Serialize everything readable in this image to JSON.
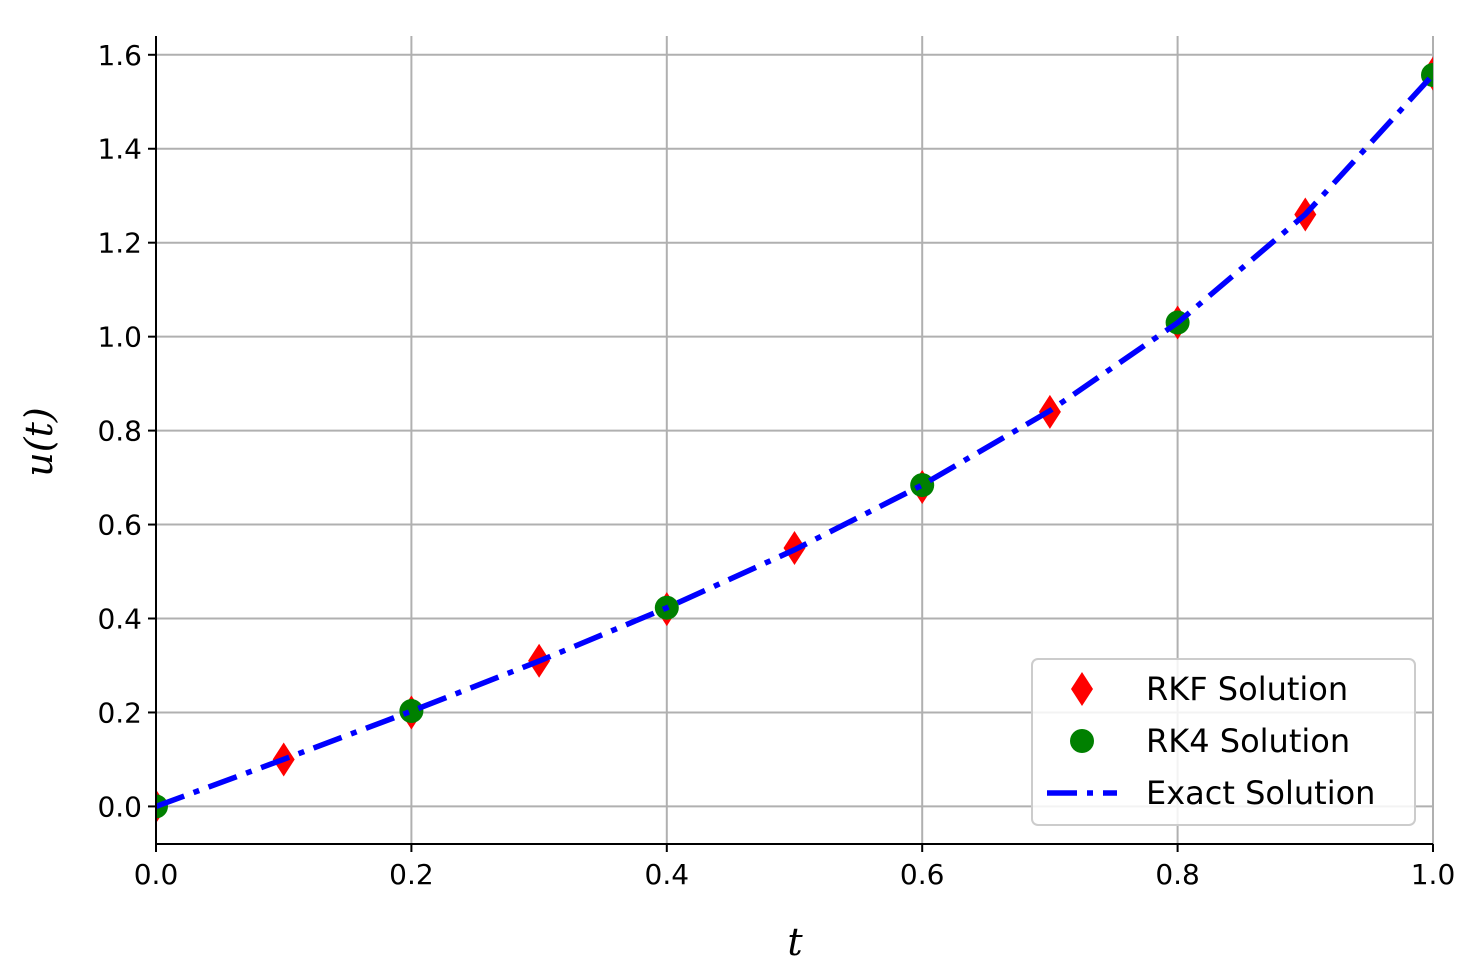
{
  "chart_data": {
    "type": "line",
    "title": "",
    "xlabel": "t",
    "ylabel": "u(t)",
    "xlim": [
      0.0,
      1.0
    ],
    "ylim": [
      -0.08,
      1.64
    ],
    "grid": true,
    "legend_position": "bottom-right",
    "x_ticks": [
      "0.0",
      "0.2",
      "0.4",
      "0.6",
      "0.8",
      "1.0"
    ],
    "y_ticks": [
      "0.0",
      "0.2",
      "0.4",
      "0.6",
      "0.8",
      "1.0",
      "1.2",
      "1.4",
      "1.6"
    ],
    "series": [
      {
        "name": "RKF Solution",
        "kind": "scatter",
        "marker": "diamond",
        "color": "#ff0000",
        "x": [
          0.0,
          0.1,
          0.2,
          0.3,
          0.4,
          0.5,
          0.6,
          0.7,
          0.8,
          0.9,
          1.0
        ],
        "y": [
          0.0,
          0.1,
          0.2,
          0.31,
          0.42,
          0.55,
          0.68,
          0.84,
          1.03,
          1.26,
          1.56
        ]
      },
      {
        "name": "RK4 Solution",
        "kind": "scatter",
        "marker": "circle",
        "color": "#008000",
        "x": [
          0.0,
          0.2,
          0.4,
          0.6,
          0.8,
          1.0
        ],
        "y": [
          0.0,
          0.203,
          0.423,
          0.684,
          1.03,
          1.557
        ]
      },
      {
        "name": "Exact Solution",
        "kind": "line",
        "linestyle": "dashdot",
        "color": "#0000ff",
        "x": [
          0.0,
          0.1,
          0.2,
          0.3,
          0.4,
          0.5,
          0.6,
          0.7,
          0.8,
          0.9,
          1.0
        ],
        "y": [
          0.0,
          0.1003,
          0.2027,
          0.3093,
          0.4228,
          0.5463,
          0.6841,
          0.8423,
          1.0296,
          1.2602,
          1.5574
        ]
      }
    ]
  }
}
